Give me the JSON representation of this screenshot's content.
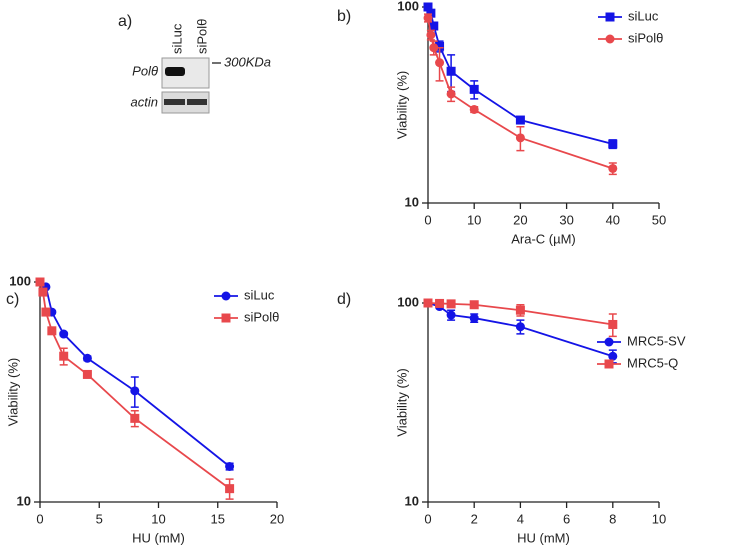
{
  "blot": {
    "label": "a)",
    "lanes": [
      "siLuc",
      "siPolθ"
    ],
    "rows": [
      "Polθ",
      "actin"
    ],
    "marker": "300KDa"
  },
  "chart_data": [
    {
      "type": "line",
      "label": "b)",
      "xlabel": "Ara-C (µM)",
      "ylabel": "Viability (%)",
      "log_y": true,
      "xlim": [
        0,
        50
      ],
      "xticks": [
        0,
        10,
        20,
        30,
        40,
        50
      ],
      "ylim": [
        10,
        100
      ],
      "yticks": [
        10,
        100
      ],
      "series": [
        {
          "name": "siLuc",
          "color": "#1414e6",
          "marker": "square",
          "x": [
            0,
            0.625,
            1.25,
            2.5,
            5,
            10,
            20,
            40
          ],
          "values": [
            100,
            93,
            80,
            63,
            47,
            38,
            26.5,
            20
          ],
          "errors": [
            3,
            3,
            3,
            4,
            10,
            4,
            1,
            1
          ]
        },
        {
          "name": "siPolθ",
          "color": "#e8484c",
          "marker": "circle",
          "x": [
            0,
            0.625,
            1.25,
            2.5,
            5,
            10,
            20,
            40
          ],
          "values": [
            88,
            72,
            62,
            52,
            36,
            30,
            21.5,
            15
          ],
          "errors": [
            4,
            4,
            5,
            10,
            3,
            1,
            3,
            1
          ]
        }
      ]
    },
    {
      "type": "line",
      "label": "c)",
      "xlabel": "HU (mM)",
      "ylabel": "Viability (%)",
      "log_y": true,
      "xlim": [
        0,
        20
      ],
      "xticks": [
        0,
        5,
        10,
        15,
        20
      ],
      "ylim": [
        10,
        100
      ],
      "yticks": [
        10,
        100
      ],
      "series": [
        {
          "name": "siLuc",
          "color": "#1414e6",
          "marker": "circle",
          "x": [
            0,
            0.5,
            1,
            2,
            4,
            8,
            16
          ],
          "values": [
            100,
            95,
            73,
            58,
            45,
            32,
            14.5
          ],
          "errors": [
            1,
            1,
            1,
            1,
            1,
            5,
            0.5
          ]
        },
        {
          "name": "siPolθ",
          "color": "#e8484c",
          "marker": "square",
          "x": [
            0,
            0.25,
            0.5,
            1,
            2,
            4,
            8,
            16
          ],
          "values": [
            100,
            90,
            73,
            60,
            46,
            38,
            24,
            11.5
          ],
          "errors": [
            2,
            3,
            2,
            2,
            4,
            1,
            2,
            1.2
          ]
        }
      ]
    },
    {
      "type": "line",
      "label": "d)",
      "xlabel": "HU (mM)",
      "ylabel": "Viability (%)",
      "log_y": true,
      "xlim": [
        0,
        10
      ],
      "xticks": [
        0,
        2,
        4,
        6,
        8,
        10
      ],
      "ylim": [
        10,
        100
      ],
      "yticks": [
        10,
        100
      ],
      "series": [
        {
          "name": "MRC5-SV",
          "color": "#1414e6",
          "marker": "circle",
          "x": [
            0,
            0.5,
            1,
            2,
            4,
            8
          ],
          "values": [
            100,
            96,
            87,
            84,
            76,
            54
          ],
          "errors": [
            1,
            2,
            5,
            4,
            6,
            4
          ]
        },
        {
          "name": "MRC5-Q",
          "color": "#e8484c",
          "marker": "square",
          "x": [
            0,
            0.5,
            1,
            2,
            4,
            8
          ],
          "values": [
            100,
            99.5,
            99,
            98,
            92,
            78
          ],
          "errors": [
            1,
            1,
            1,
            2,
            6,
            10
          ]
        }
      ]
    }
  ]
}
